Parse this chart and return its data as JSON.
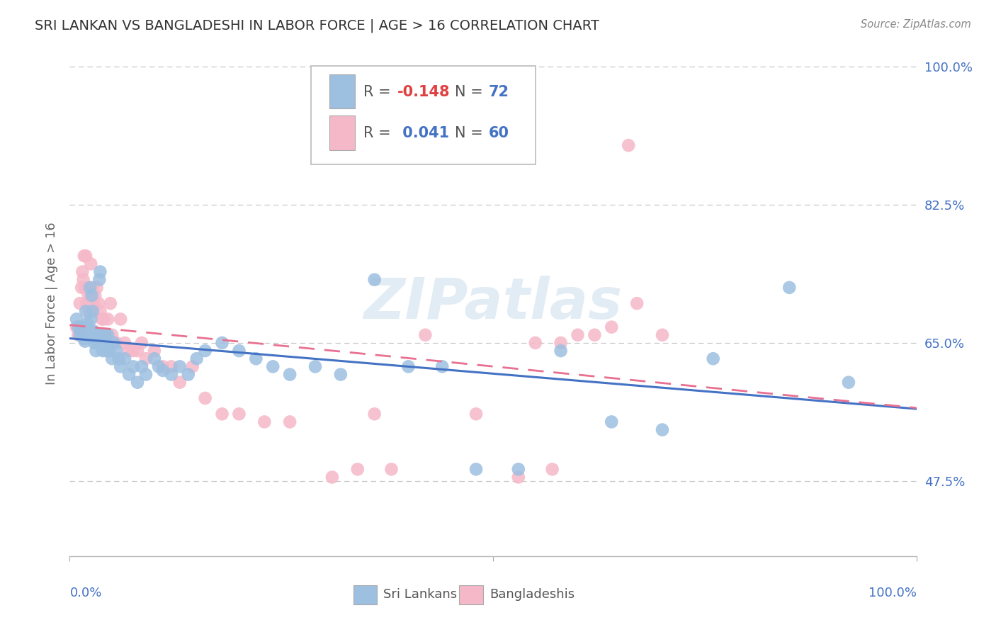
{
  "title": "SRI LANKAN VS BANGLADESHI IN LABOR FORCE | AGE > 16 CORRELATION CHART",
  "source": "Source: ZipAtlas.com",
  "ylabel": "In Labor Force | Age > 16",
  "ytick_vals": [
    0.475,
    0.65,
    0.825,
    1.0
  ],
  "ytick_labels": [
    "47.5%",
    "65.0%",
    "82.5%",
    "100.0%"
  ],
  "xmin": 0.0,
  "xmax": 1.0,
  "ymin": 0.38,
  "ymax": 1.02,
  "blue_color": "#9dbfe0",
  "pink_color": "#f5b8c8",
  "blue_line_color": "#4472c4",
  "pink_line_color": "#e87090",
  "grid_color": "#c8c8c8",
  "watermark": "ZIPatlas",
  "legend_R_blue": "-0.148",
  "legend_N_blue": "72",
  "legend_R_pink": "0.041",
  "legend_N_pink": "60",
  "blue_scatter_x": [
    0.008,
    0.01,
    0.012,
    0.013,
    0.014,
    0.015,
    0.016,
    0.017,
    0.018,
    0.019,
    0.02,
    0.021,
    0.022,
    0.023,
    0.024,
    0.025,
    0.026,
    0.027,
    0.028,
    0.029,
    0.03,
    0.031,
    0.032,
    0.033,
    0.035,
    0.036,
    0.037,
    0.038,
    0.039,
    0.04,
    0.042,
    0.043,
    0.044,
    0.045,
    0.047,
    0.05,
    0.052,
    0.055,
    0.058,
    0.06,
    0.065,
    0.07,
    0.075,
    0.08,
    0.085,
    0.09,
    0.1,
    0.105,
    0.11,
    0.12,
    0.13,
    0.14,
    0.15,
    0.16,
    0.18,
    0.2,
    0.22,
    0.24,
    0.26,
    0.29,
    0.32,
    0.36,
    0.4,
    0.44,
    0.48,
    0.53,
    0.58,
    0.64,
    0.7,
    0.76,
    0.85,
    0.92
  ],
  "blue_scatter_y": [
    0.68,
    0.67,
    0.66,
    0.665,
    0.67,
    0.66,
    0.658,
    0.655,
    0.652,
    0.69,
    0.665,
    0.675,
    0.66,
    0.668,
    0.72,
    0.68,
    0.71,
    0.69,
    0.665,
    0.65,
    0.66,
    0.64,
    0.66,
    0.65,
    0.73,
    0.74,
    0.65,
    0.66,
    0.64,
    0.65,
    0.66,
    0.64,
    0.65,
    0.66,
    0.64,
    0.63,
    0.65,
    0.64,
    0.63,
    0.62,
    0.63,
    0.61,
    0.62,
    0.6,
    0.62,
    0.61,
    0.63,
    0.62,
    0.615,
    0.61,
    0.62,
    0.61,
    0.63,
    0.64,
    0.65,
    0.64,
    0.63,
    0.62,
    0.61,
    0.62,
    0.61,
    0.73,
    0.62,
    0.62,
    0.49,
    0.49,
    0.64,
    0.55,
    0.54,
    0.63,
    0.72,
    0.6
  ],
  "pink_scatter_x": [
    0.008,
    0.01,
    0.012,
    0.014,
    0.015,
    0.016,
    0.017,
    0.018,
    0.019,
    0.02,
    0.021,
    0.022,
    0.023,
    0.025,
    0.027,
    0.028,
    0.03,
    0.032,
    0.034,
    0.036,
    0.038,
    0.04,
    0.042,
    0.045,
    0.048,
    0.05,
    0.055,
    0.06,
    0.065,
    0.07,
    0.075,
    0.08,
    0.085,
    0.09,
    0.1,
    0.11,
    0.12,
    0.13,
    0.145,
    0.16,
    0.18,
    0.2,
    0.23,
    0.26,
    0.31,
    0.36,
    0.42,
    0.48,
    0.55,
    0.62,
    0.53,
    0.57,
    0.6,
    0.64,
    0.67,
    0.7,
    0.58,
    0.34,
    0.38,
    0.66
  ],
  "pink_scatter_y": [
    0.67,
    0.66,
    0.7,
    0.72,
    0.74,
    0.73,
    0.76,
    0.72,
    0.76,
    0.7,
    0.72,
    0.71,
    0.69,
    0.75,
    0.72,
    0.7,
    0.71,
    0.72,
    0.7,
    0.69,
    0.68,
    0.68,
    0.66,
    0.68,
    0.7,
    0.66,
    0.65,
    0.68,
    0.65,
    0.64,
    0.64,
    0.64,
    0.65,
    0.63,
    0.64,
    0.62,
    0.62,
    0.6,
    0.62,
    0.58,
    0.56,
    0.56,
    0.55,
    0.55,
    0.48,
    0.56,
    0.66,
    0.56,
    0.65,
    0.66,
    0.48,
    0.49,
    0.66,
    0.67,
    0.7,
    0.66,
    0.65,
    0.49,
    0.49,
    0.9
  ]
}
